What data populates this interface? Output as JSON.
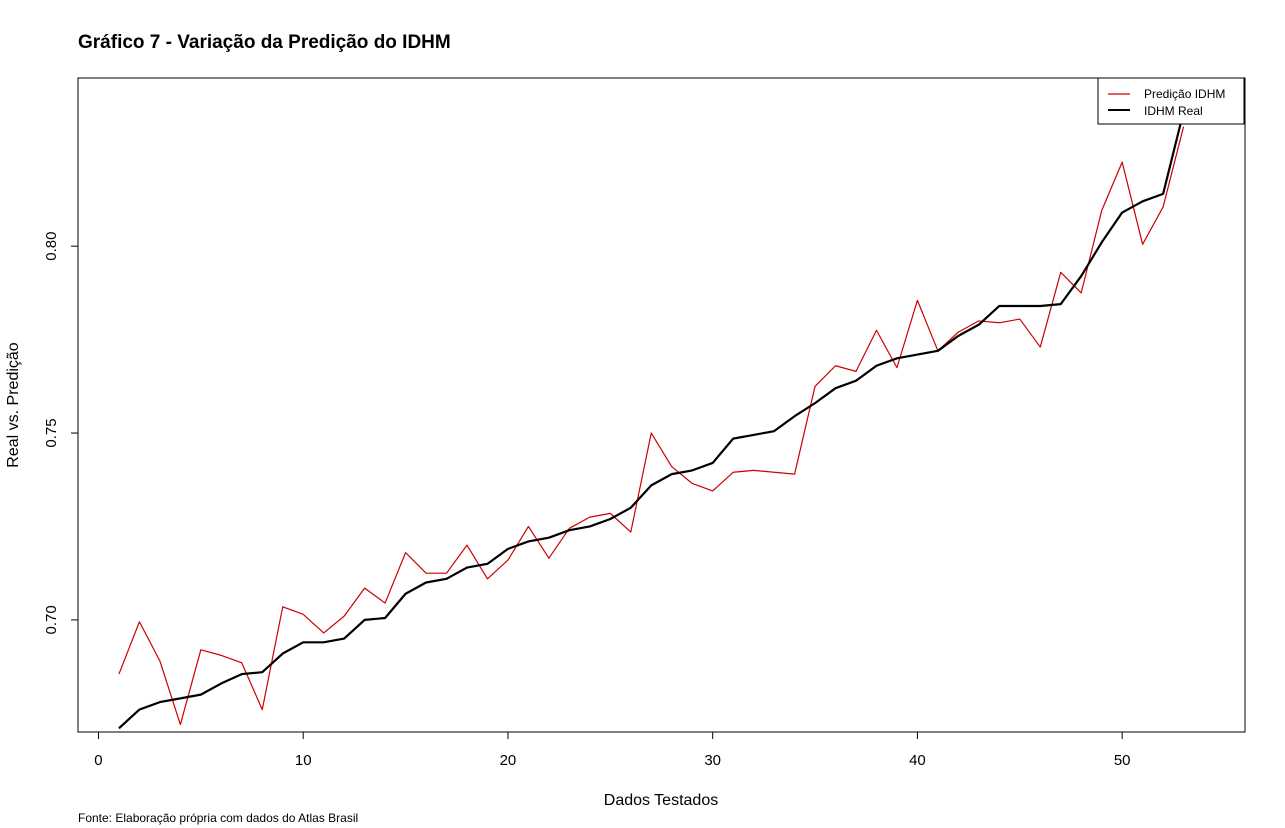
{
  "chart_data": {
    "type": "line",
    "title": "Gráfico 7 - Variação da Predição do IDHM",
    "xlabel": "Dados Testados",
    "ylabel": "Real vs. Predição",
    "caption": "Fonte: Elaboração própria com dados do Atlas Brasil",
    "xlim": [
      -1,
      56
    ],
    "ylim": [
      0.67,
      0.845
    ],
    "xticks": [
      0,
      10,
      20,
      30,
      40,
      50
    ],
    "yticks": [
      0.7,
      0.75,
      0.8
    ],
    "xtick_labels": [
      "0",
      "10",
      "20",
      "30",
      "40",
      "50"
    ],
    "ytick_labels": [
      "0.70",
      "0.75",
      "0.80"
    ],
    "grid": false,
    "legend_position": "top-right",
    "x": [
      1,
      2,
      3,
      4,
      5,
      6,
      7,
      8,
      9,
      10,
      11,
      12,
      13,
      14,
      15,
      16,
      17,
      18,
      19,
      20,
      21,
      22,
      23,
      24,
      25,
      26,
      27,
      28,
      29,
      30,
      31,
      32,
      33,
      34,
      35,
      36,
      37,
      38,
      39,
      40,
      41,
      42,
      43,
      44,
      45,
      46,
      47,
      48,
      49,
      50,
      51,
      52,
      53
    ],
    "series": [
      {
        "name": "Predição IDHM",
        "color": "#cc0000",
        "values": [
          0.6855,
          0.6995,
          0.689,
          0.672,
          0.692,
          0.6905,
          0.6885,
          0.676,
          0.7035,
          0.7015,
          0.6965,
          0.701,
          0.7085,
          0.7045,
          0.718,
          0.7125,
          0.7125,
          0.72,
          0.711,
          0.716,
          0.725,
          0.7165,
          0.7245,
          0.7275,
          0.7285,
          0.7235,
          0.75,
          0.741,
          0.7365,
          0.7345,
          0.7395,
          0.74,
          0.7395,
          0.739,
          0.7625,
          0.768,
          0.7665,
          0.7775,
          0.7675,
          0.7855,
          0.772,
          0.777,
          0.78,
          0.7795,
          0.7805,
          0.773,
          0.793,
          0.7875,
          0.8095,
          0.8225,
          0.8005,
          0.8105,
          0.832
        ]
      },
      {
        "name": "IDHM Real",
        "color": "#000000",
        "values": [
          0.671,
          0.676,
          0.678,
          0.679,
          0.68,
          0.683,
          0.6855,
          0.686,
          0.691,
          0.694,
          0.694,
          0.695,
          0.7,
          0.7005,
          0.707,
          0.71,
          0.711,
          0.714,
          0.715,
          0.719,
          0.721,
          0.722,
          0.724,
          0.725,
          0.727,
          0.73,
          0.736,
          0.739,
          0.74,
          0.742,
          0.7485,
          0.7495,
          0.7505,
          0.7545,
          0.758,
          0.762,
          0.764,
          0.768,
          0.77,
          0.771,
          0.772,
          0.776,
          0.779,
          0.784,
          0.784,
          0.784,
          0.7845,
          0.792,
          0.801,
          0.809,
          0.812,
          0.814,
          0.836
        ]
      }
    ]
  }
}
